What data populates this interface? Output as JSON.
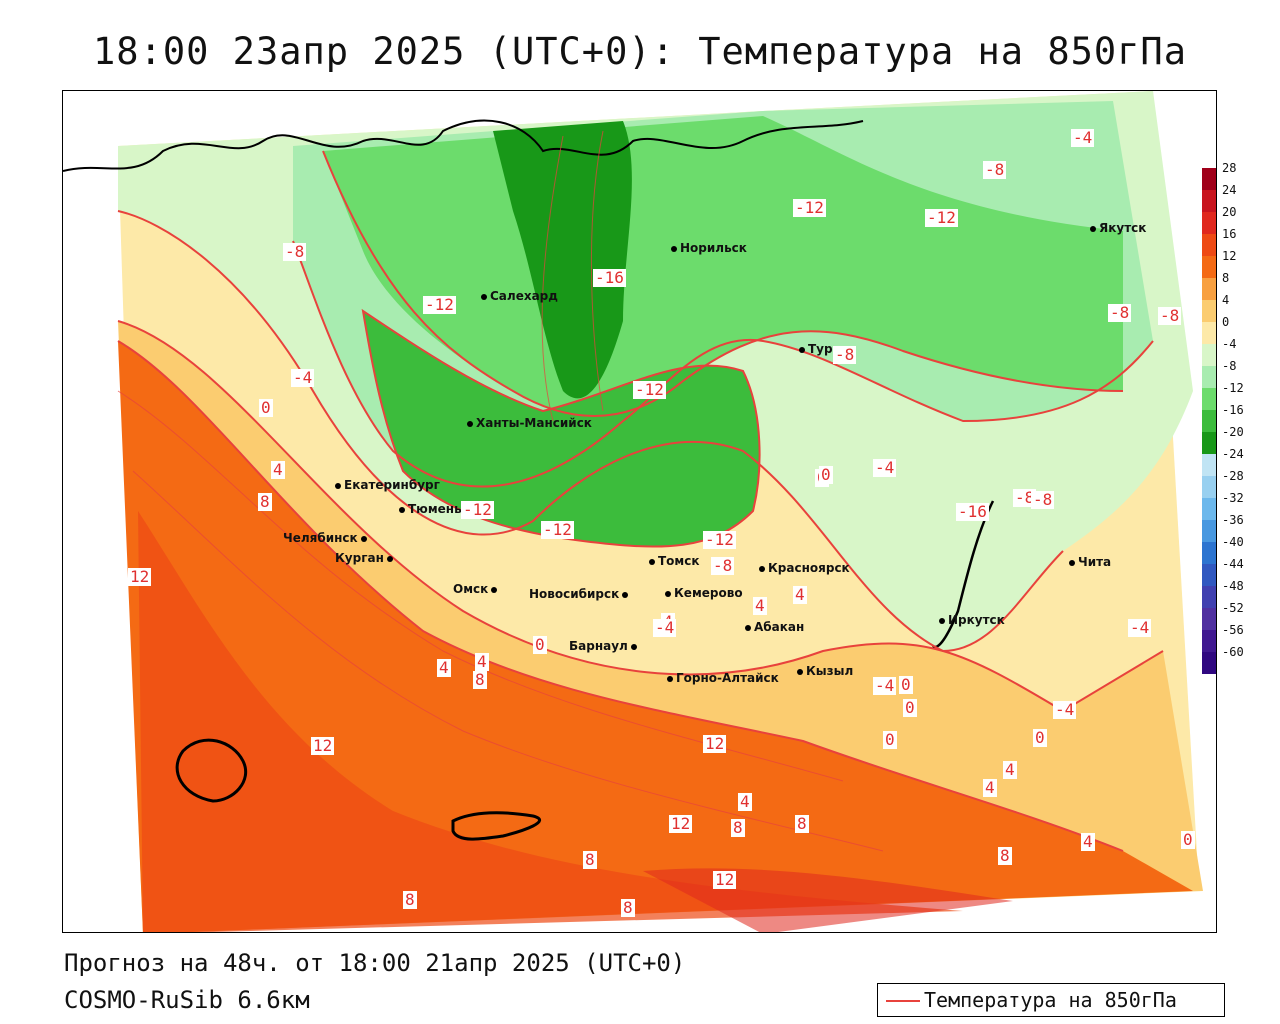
{
  "title": "18:00 23апр 2025 (UTC+0): Температура на 850гПа",
  "footer": {
    "forecast": "Прогноз на 48ч. от 18:00 21апр 2025 (UTC+0)",
    "model": "COSMO-RuSib 6.6км"
  },
  "legend": {
    "label": "Температура на 850гПа",
    "line_color": "#e8423c"
  },
  "colorbar": {
    "ticks": [
      "28",
      "24",
      "20",
      "16",
      "12",
      "8",
      "4",
      "0",
      "-4",
      "-8",
      "-12",
      "-16",
      "-20",
      "-24",
      "-28",
      "-32",
      "-36",
      "-40",
      "-44",
      "-48",
      "-52",
      "-56",
      "-60"
    ],
    "colors": [
      "#a0001a",
      "#c8141e",
      "#e0281e",
      "#ee4a14",
      "#f46a14",
      "#f8a040",
      "#fbcc70",
      "#fde9a8",
      "#d8f6c8",
      "#a8ecb0",
      "#6cdc6c",
      "#3cbc3c",
      "#189818",
      "#c0e4f4",
      "#98d0f0",
      "#6cb8ec",
      "#4898e0",
      "#2c74d0",
      "#3058c0",
      "#4040b0",
      "#5030a0",
      "#401890",
      "#300880"
    ]
  },
  "cities": [
    {
      "name": "Салехард"
    },
    {
      "name": "Норильск"
    },
    {
      "name": "Якутск"
    },
    {
      "name": "Тура"
    },
    {
      "name": "Ханты-Мансийск"
    },
    {
      "name": "Екатеринбург"
    },
    {
      "name": "Тюмень"
    },
    {
      "name": "Челябинск"
    },
    {
      "name": "Курган"
    },
    {
      "name": "Омск"
    },
    {
      "name": "Новосибирск"
    },
    {
      "name": "Томск"
    },
    {
      "name": "Красноярск"
    },
    {
      "name": "Кемерово"
    },
    {
      "name": "Барнаул"
    },
    {
      "name": "Абакан"
    },
    {
      "name": "Горно-Алтайск"
    },
    {
      "name": "Кызыл"
    },
    {
      "name": "Иркутск"
    },
    {
      "name": "Чита"
    }
  ],
  "contour_labels": [
    "-4",
    "-8",
    "-8",
    "-12",
    "-12",
    "-16",
    "-12",
    "-12",
    "-8",
    "-8",
    "-8",
    "-12",
    "-12",
    "-12",
    "-8",
    "-8",
    "-4",
    "0",
    "-4",
    "0",
    "4",
    "8",
    "12",
    "4",
    "8",
    "12",
    "0",
    "4",
    "4",
    "4",
    "-4",
    "0",
    "4",
    "8",
    "8",
    "12",
    "8",
    "8",
    "12",
    "4",
    "0",
    "-4",
    "4",
    "8",
    "12",
    "8",
    "4",
    "0",
    "-4",
    "-16",
    "-8",
    "0",
    "-4",
    "0",
    "0",
    "4"
  ],
  "colors": {
    "warm_deep": "#ee4a14",
    "warm_mid": "#f46a14",
    "warm_light": "#fbcc70",
    "pale_yellow": "#fde9a8",
    "pale_green": "#d8f6c8",
    "light_green": "#a8ecb0",
    "green": "#6cdc6c",
    "mid_green": "#3cbc3c",
    "dark_green": "#189818",
    "contour": "#e8423c"
  }
}
